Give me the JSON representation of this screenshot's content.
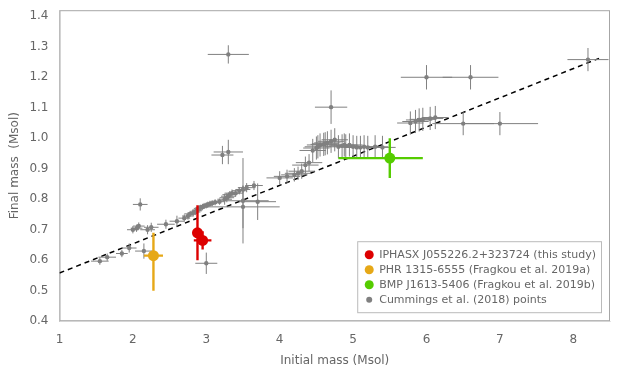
{
  "chart_data": {
    "type": "scatter",
    "xlabel": "Initial mass (Msol)",
    "ylabel": "Final mass  (Msol)",
    "xlim": [
      1,
      8.5
    ],
    "ylim": [
      0.4,
      1.42
    ],
    "xticks": [
      1,
      2,
      3,
      4,
      5,
      6,
      7,
      8
    ],
    "yticks": [
      0.4,
      0.5,
      0.6,
      0.7,
      0.8,
      0.9,
      {
        "value": 1.0,
        "label": "1.0"
      },
      1.1,
      1.2,
      1.3,
      1.4
    ],
    "grid": false,
    "legend": "lower right",
    "series": [
      {
        "name": "IPHASX J055226.2+323724 (this study)",
        "color": "#dd0000",
        "marker": "circle",
        "points": [
          {
            "x": 2.88,
            "y": 0.69,
            "xerr": 0.0,
            "yerr_lo": 0.09,
            "yerr_hi": 0.09
          },
          {
            "x": 2.95,
            "y": 0.665,
            "xerr": 0.12,
            "yerr_lo": 0.03,
            "yerr_hi": 0.03
          }
        ]
      },
      {
        "name": "PHR 1315-6555 (Fragkou et al. 2019a)",
        "color": "#e6a817",
        "marker": "circle",
        "points": [
          {
            "x": 2.28,
            "y": 0.615,
            "xerr": 0.13,
            "yerr_lo": 0.115,
            "yerr_hi": 0.075
          }
        ]
      },
      {
        "name": "BMP J1613-5406 (Fragkou et al. 2019b)",
        "color": "#55cc00",
        "marker": "circle",
        "points": [
          {
            "x": 5.5,
            "y": 0.935,
            "xerr_lo": 0.7,
            "xerr_hi": 0.45,
            "yerr_lo": 0.065,
            "yerr_hi": 0.065
          }
        ]
      },
      {
        "name": "Cummings et al. (2018) points",
        "color": "#808080",
        "marker": "dot",
        "points": [
          {
            "x": 1.55,
            "y": 0.597,
            "xerr": 0.12,
            "yerr": 0.012
          },
          {
            "x": 1.65,
            "y": 0.61,
            "xerr": 0.12,
            "yerr": 0.012
          },
          {
            "x": 1.85,
            "y": 0.622,
            "xerr": 0.08,
            "yerr": 0.012
          },
          {
            "x": 1.95,
            "y": 0.64,
            "xerr": 0.1,
            "yerr": 0.015
          },
          {
            "x": 2.0,
            "y": 0.7,
            "xerr": 0.08,
            "yerr": 0.012
          },
          {
            "x": 2.05,
            "y": 0.705,
            "xerr": 0.08,
            "yerr": 0.012
          },
          {
            "x": 2.08,
            "y": 0.712,
            "xerr": 0.08,
            "yerr": 0.012
          },
          {
            "x": 2.1,
            "y": 0.783,
            "xerr": 0.1,
            "yerr": 0.02
          },
          {
            "x": 2.15,
            "y": 0.63,
            "xerr": 0.12,
            "yerr": 0.025
          },
          {
            "x": 2.2,
            "y": 0.7,
            "xerr": 0.1,
            "yerr": 0.015
          },
          {
            "x": 2.25,
            "y": 0.708,
            "xerr": 0.1,
            "yerr": 0.015
          },
          {
            "x": 2.45,
            "y": 0.718,
            "xerr": 0.12,
            "yerr": 0.015
          },
          {
            "x": 2.6,
            "y": 0.728,
            "xerr": 0.1,
            "yerr": 0.018
          },
          {
            "x": 2.7,
            "y": 0.738,
            "xerr": 0.08,
            "yerr": 0.012
          },
          {
            "x": 2.75,
            "y": 0.745,
            "xerr": 0.08,
            "yerr": 0.012
          },
          {
            "x": 2.78,
            "y": 0.752,
            "xerr": 0.08,
            "yerr": 0.01
          },
          {
            "x": 2.82,
            "y": 0.755,
            "xerr": 0.07,
            "yerr": 0.01
          },
          {
            "x": 2.85,
            "y": 0.758,
            "xerr": 0.07,
            "yerr": 0.01
          },
          {
            "x": 2.87,
            "y": 0.762,
            "xerr": 0.07,
            "yerr": 0.01
          },
          {
            "x": 2.88,
            "y": 0.765,
            "xerr": 0.07,
            "yerr": 0.01
          },
          {
            "x": 2.9,
            "y": 0.77,
            "xerr": 0.07,
            "yerr": 0.01
          },
          {
            "x": 2.92,
            "y": 0.772,
            "xerr": 0.07,
            "yerr": 0.01
          },
          {
            "x": 2.95,
            "y": 0.775,
            "xerr": 0.07,
            "yerr": 0.01
          },
          {
            "x": 2.97,
            "y": 0.778,
            "xerr": 0.07,
            "yerr": 0.01
          },
          {
            "x": 3.0,
            "y": 0.59,
            "xerr": 0.15,
            "yerr": 0.035
          },
          {
            "x": 3.0,
            "y": 0.78,
            "xerr": 0.07,
            "yerr": 0.01
          },
          {
            "x": 3.02,
            "y": 0.782,
            "xerr": 0.07,
            "yerr": 0.01
          },
          {
            "x": 3.05,
            "y": 0.785,
            "xerr": 0.07,
            "yerr": 0.01
          },
          {
            "x": 3.08,
            "y": 0.787,
            "xerr": 0.07,
            "yerr": 0.01
          },
          {
            "x": 3.12,
            "y": 0.79,
            "xerr": 0.07,
            "yerr": 0.01
          },
          {
            "x": 3.18,
            "y": 0.792,
            "xerr": 0.07,
            "yerr": 0.01
          },
          {
            "x": 3.22,
            "y": 0.945,
            "xerr": 0.15,
            "yerr": 0.03
          },
          {
            "x": 3.25,
            "y": 0.8,
            "xerr": 0.1,
            "yerr": 0.018
          },
          {
            "x": 3.28,
            "y": 0.805,
            "xerr": 0.1,
            "yerr": 0.015
          },
          {
            "x": 3.3,
            "y": 0.81,
            "xerr": 0.1,
            "yerr": 0.012
          },
          {
            "x": 3.32,
            "y": 0.815,
            "xerr": 0.1,
            "yerr": 0.012
          },
          {
            "x": 3.3,
            "y": 0.955,
            "xerr": 0.2,
            "yerr": 0.04
          },
          {
            "x": 3.35,
            "y": 0.82,
            "xerr": 0.1,
            "yerr": 0.012
          },
          {
            "x": 3.4,
            "y": 0.82,
            "xerr": 0.1,
            "yerr": 0.012
          },
          {
            "x": 3.45,
            "y": 0.828,
            "xerr": 0.1,
            "yerr": 0.012
          },
          {
            "x": 3.5,
            "y": 0.832,
            "xerr": 0.1,
            "yerr": 0.012
          },
          {
            "x": 3.55,
            "y": 0.838,
            "xerr": 0.12,
            "yerr": 0.015
          },
          {
            "x": 3.65,
            "y": 0.845,
            "xerr": 0.12,
            "yerr": 0.015
          },
          {
            "x": 3.5,
            "y": 0.795,
            "xerr": 0.35,
            "yerr": 0.14
          },
          {
            "x": 3.7,
            "y": 0.792,
            "xerr": 0.25,
            "yerr": 0.06
          },
          {
            "x": 3.5,
            "y": 0.775,
            "xerr": 0.5,
            "yerr": 0.07
          },
          {
            "x": 3.3,
            "y": 1.275,
            "xerr": 0.28,
            "yerr": 0.03
          },
          {
            "x": 4.0,
            "y": 0.87,
            "xerr": 0.18,
            "yerr": 0.022
          },
          {
            "x": 4.1,
            "y": 0.875,
            "xerr": 0.18,
            "yerr": 0.022
          },
          {
            "x": 4.2,
            "y": 0.88,
            "xerr": 0.18,
            "yerr": 0.022
          },
          {
            "x": 4.25,
            "y": 0.885,
            "xerr": 0.18,
            "yerr": 0.022
          },
          {
            "x": 4.3,
            "y": 0.892,
            "xerr": 0.18,
            "yerr": 0.025
          },
          {
            "x": 4.35,
            "y": 0.912,
            "xerr": 0.18,
            "yerr": 0.028
          },
          {
            "x": 4.4,
            "y": 0.92,
            "xerr": 0.18,
            "yerr": 0.028
          },
          {
            "x": 4.45,
            "y": 0.96,
            "xerr": 0.18,
            "yerr": 0.038
          },
          {
            "x": 4.5,
            "y": 0.968,
            "xerr": 0.18,
            "yerr": 0.038
          },
          {
            "x": 4.52,
            "y": 0.972,
            "xerr": 0.18,
            "yerr": 0.038
          },
          {
            "x": 4.55,
            "y": 0.978,
            "xerr": 0.18,
            "yerr": 0.038
          },
          {
            "x": 4.6,
            "y": 0.98,
            "xerr": 0.18,
            "yerr": 0.038
          },
          {
            "x": 4.62,
            "y": 0.982,
            "xerr": 0.18,
            "yerr": 0.038
          },
          {
            "x": 4.65,
            "y": 0.985,
            "xerr": 0.18,
            "yerr": 0.038
          },
          {
            "x": 4.7,
            "y": 0.99,
            "xerr": 0.18,
            "yerr": 0.038
          },
          {
            "x": 4.7,
            "y": 1.102,
            "xerr": 0.22,
            "yerr": 0.055
          },
          {
            "x": 4.75,
            "y": 0.995,
            "xerr": 0.18,
            "yerr": 0.038
          },
          {
            "x": 4.8,
            "y": 0.972,
            "xerr": 0.18,
            "yerr": 0.038
          },
          {
            "x": 4.85,
            "y": 0.975,
            "xerr": 0.18,
            "yerr": 0.038
          },
          {
            "x": 4.88,
            "y": 0.978,
            "xerr": 0.18,
            "yerr": 0.038
          },
          {
            "x": 4.9,
            "y": 0.975,
            "xerr": 0.18,
            "yerr": 0.038
          },
          {
            "x": 4.95,
            "y": 0.978,
            "xerr": 0.18,
            "yerr": 0.038
          },
          {
            "x": 5.0,
            "y": 0.972,
            "xerr": 0.18,
            "yerr": 0.038
          },
          {
            "x": 5.05,
            "y": 0.97,
            "xerr": 0.18,
            "yerr": 0.038
          },
          {
            "x": 5.1,
            "y": 0.97,
            "xerr": 0.18,
            "yerr": 0.038
          },
          {
            "x": 5.15,
            "y": 0.972,
            "xerr": 0.18,
            "yerr": 0.038
          },
          {
            "x": 5.2,
            "y": 0.97,
            "xerr": 0.18,
            "yerr": 0.038
          },
          {
            "x": 5.3,
            "y": 0.972,
            "xerr": 0.18,
            "yerr": 0.038
          },
          {
            "x": 5.4,
            "y": 0.97,
            "xerr": 0.18,
            "yerr": 0.038
          },
          {
            "x": 5.78,
            "y": 1.05,
            "xerr": 0.18,
            "yerr": 0.038
          },
          {
            "x": 5.85,
            "y": 1.055,
            "xerr": 0.18,
            "yerr": 0.038
          },
          {
            "x": 5.9,
            "y": 1.06,
            "xerr": 0.18,
            "yerr": 0.038
          },
          {
            "x": 5.95,
            "y": 1.062,
            "xerr": 0.18,
            "yerr": 0.038
          },
          {
            "x": 6.05,
            "y": 1.065,
            "xerr": 0.18,
            "yerr": 0.038
          },
          {
            "x": 6.12,
            "y": 1.068,
            "xerr": 0.18,
            "yerr": 0.038
          },
          {
            "x": 6.0,
            "y": 1.2,
            "xerr": 0.35,
            "yerr": 0.04
          },
          {
            "x": 6.5,
            "y": 1.048,
            "xerr": 0.42,
            "yerr": 0.038
          },
          {
            "x": 6.6,
            "y": 1.2,
            "xerr": 0.38,
            "yerr": 0.04
          },
          {
            "x": 7.0,
            "y": 1.048,
            "xerr": 0.52,
            "yerr": 0.038
          },
          {
            "x": 8.2,
            "y": 1.258,
            "xerr": 0.28,
            "yerr": 0.038
          }
        ]
      },
      {
        "type": "line",
        "line_style": "dashed",
        "color": "#000000",
        "x": [
          1.0,
          8.35
        ],
        "values": [
          0.558,
          1.262
        ]
      }
    ]
  }
}
